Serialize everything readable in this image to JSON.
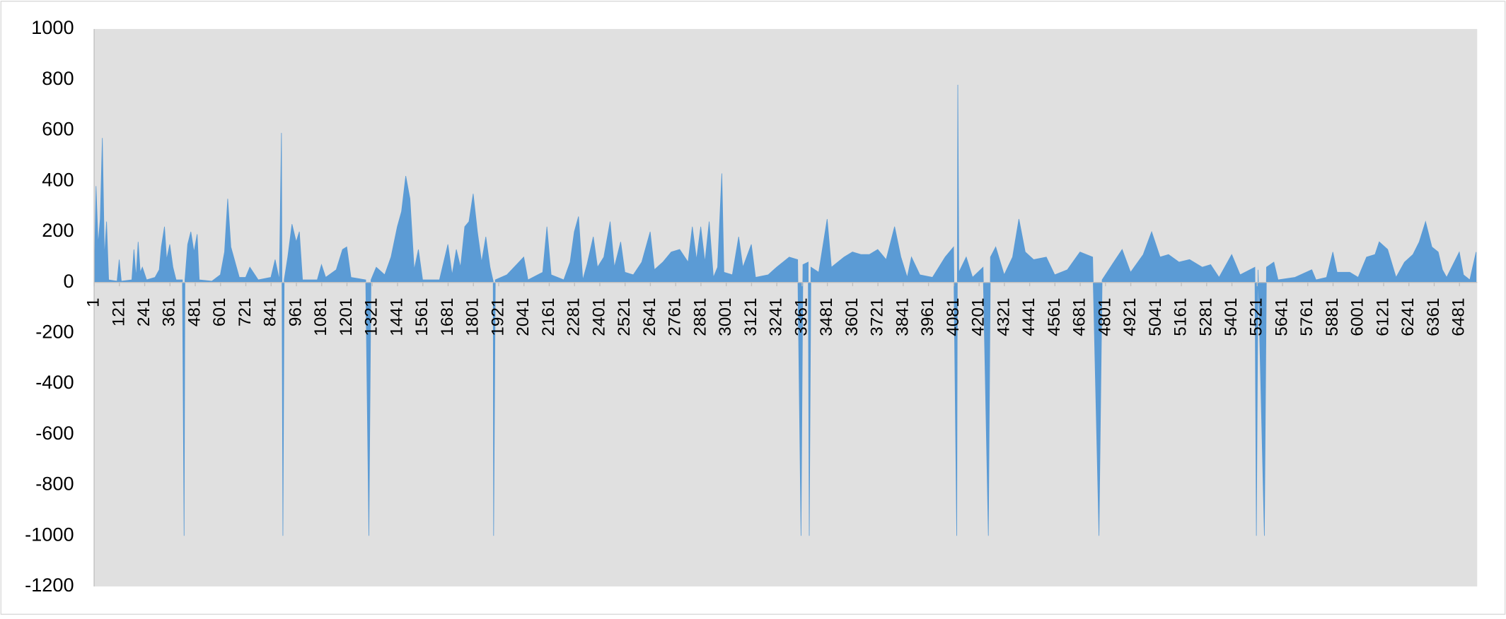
{
  "chart_data": {
    "type": "area",
    "x": [
      1,
      10,
      20,
      30,
      40,
      50,
      60,
      70,
      110,
      120,
      130,
      180,
      190,
      200,
      210,
      220,
      230,
      250,
      290,
      310,
      320,
      335,
      345,
      360,
      375,
      390,
      420,
      428,
      432,
      445,
      460,
      475,
      490,
      500,
      560,
      600,
      620,
      635,
      650,
      670,
      690,
      720,
      740,
      780,
      840,
      860,
      880,
      890,
      897,
      903,
      920,
      940,
      960,
      975,
      990,
      1060,
      1080,
      1100,
      1150,
      1180,
      1200,
      1220,
      1290,
      1305,
      1315,
      1340,
      1380,
      1410,
      1440,
      1460,
      1480,
      1500,
      1520,
      1540,
      1560,
      1640,
      1680,
      1700,
      1720,
      1740,
      1760,
      1780,
      1800,
      1820,
      1840,
      1860,
      1880,
      1895,
      1897,
      1905,
      1960,
      2040,
      2060,
      2130,
      2150,
      2170,
      2230,
      2260,
      2280,
      2300,
      2320,
      2340,
      2370,
      2390,
      2420,
      2450,
      2470,
      2500,
      2520,
      2560,
      2600,
      2640,
      2660,
      2700,
      2740,
      2780,
      2820,
      2840,
      2860,
      2880,
      2900,
      2920,
      2940,
      2960,
      2980,
      2990,
      3030,
      3060,
      3080,
      3120,
      3140,
      3200,
      3240,
      3300,
      3340,
      3356,
      3365,
      3390,
      3395,
      3403,
      3440,
      3480,
      3500,
      3560,
      3600,
      3640,
      3680,
      3720,
      3760,
      3800,
      3830,
      3860,
      3880,
      3920,
      3980,
      4040,
      4080,
      4095,
      4100,
      4105,
      4140,
      4170,
      4220,
      4245,
      4255,
      4280,
      4320,
      4360,
      4390,
      4420,
      4460,
      4520,
      4560,
      4620,
      4680,
      4740,
      4770,
      4785,
      4840,
      4880,
      4920,
      4980,
      5020,
      5060,
      5100,
      5150,
      5200,
      5260,
      5300,
      5340,
      5400,
      5440,
      5510,
      5517,
      5525,
      5555,
      5565,
      5600,
      5620,
      5700,
      5780,
      5800,
      5850,
      5880,
      5900,
      5960,
      6000,
      6040,
      6080,
      6100,
      6140,
      6180,
      6220,
      6260,
      6290,
      6320,
      6350,
      6380,
      6400,
      6420,
      6480,
      6500,
      6530,
      6560
    ],
    "values": [
      0,
      380,
      150,
      250,
      570,
      100,
      240,
      10,
      5,
      90,
      5,
      10,
      130,
      20,
      160,
      40,
      60,
      10,
      20,
      50,
      140,
      220,
      90,
      150,
      60,
      10,
      10,
      -1000,
      10,
      150,
      200,
      120,
      190,
      10,
      5,
      30,
      120,
      330,
      140,
      80,
      20,
      20,
      60,
      10,
      20,
      90,
      10,
      590,
      -1000,
      10,
      100,
      230,
      160,
      200,
      10,
      10,
      70,
      20,
      50,
      130,
      140,
      20,
      10,
      -1000,
      10,
      60,
      30,
      100,
      220,
      280,
      420,
      330,
      50,
      130,
      10,
      10,
      150,
      30,
      130,
      60,
      220,
      240,
      350,
      200,
      80,
      180,
      60,
      5,
      -1000,
      10,
      30,
      100,
      10,
      40,
      220,
      30,
      10,
      80,
      200,
      260,
      10,
      70,
      180,
      60,
      100,
      240,
      60,
      160,
      40,
      30,
      80,
      200,
      50,
      80,
      120,
      130,
      80,
      220,
      90,
      220,
      80,
      240,
      20,
      60,
      430,
      40,
      30,
      180,
      60,
      150,
      20,
      30,
      60,
      100,
      90,
      -1000,
      70,
      80,
      -1000,
      60,
      40,
      250,
      60,
      100,
      120,
      110,
      110,
      130,
      90,
      220,
      100,
      20,
      100,
      30,
      20,
      100,
      140,
      -1000,
      780,
      40,
      100,
      20,
      60,
      -1000,
      100,
      140,
      30,
      100,
      250,
      120,
      90,
      100,
      30,
      50,
      120,
      100,
      -1000,
      10,
      80,
      130,
      40,
      110,
      200,
      100,
      110,
      80,
      90,
      60,
      70,
      20,
      110,
      30,
      60,
      -1000,
      50,
      -1000,
      60,
      80,
      10,
      20,
      50,
      10,
      20,
      120,
      40,
      40,
      20,
      100,
      110,
      160,
      130,
      20,
      80,
      110,
      160,
      240,
      140,
      120,
      50,
      20,
      120,
      30,
      10,
      120
    ],
    "color": "#5b9bd5",
    "xlim": [
      1,
      6565
    ],
    "xticks": [
      1,
      121,
      241,
      361,
      481,
      601,
      721,
      841,
      961,
      1081,
      1201,
      1321,
      1441,
      1561,
      1681,
      1801,
      1921,
      2041,
      2161,
      2281,
      2401,
      2521,
      2641,
      2761,
      2881,
      3001,
      3121,
      3241,
      3361,
      3481,
      3601,
      3721,
      3841,
      3961,
      4081,
      4201,
      4321,
      4441,
      4561,
      4681,
      4801,
      4921,
      5041,
      5161,
      5281,
      5401,
      5521,
      5641,
      5761,
      5881,
      6001,
      6121,
      6241,
      6361,
      6481
    ],
    "ylim": [
      -1200,
      1000
    ],
    "yticks": [
      -1200,
      -1000,
      -800,
      -600,
      -400,
      -200,
      0,
      200,
      400,
      600,
      800,
      1000
    ],
    "grid": false
  }
}
